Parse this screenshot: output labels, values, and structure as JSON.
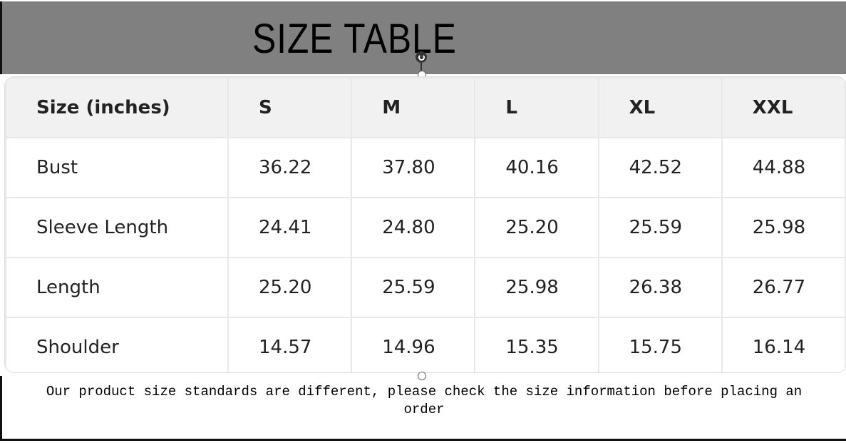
{
  "title": "SIZE TABLE",
  "table": {
    "headers": [
      "Size (inches)",
      "S",
      "M",
      "L",
      "XL",
      "XXL"
    ],
    "rows": [
      [
        "Bust",
        "36.22",
        "37.80",
        "40.16",
        "42.52",
        "44.88"
      ],
      [
        "Sleeve Length",
        "24.41",
        "24.80",
        "25.20",
        "25.59",
        "25.98"
      ],
      [
        "Length",
        "25.20",
        "25.59",
        "25.98",
        "26.38",
        "26.77"
      ],
      [
        "Shoulder",
        "14.57",
        "14.96",
        "15.35",
        "15.75",
        "16.14"
      ]
    ]
  },
  "note": "Our product size standards are different, please check the size information before placing an order"
}
